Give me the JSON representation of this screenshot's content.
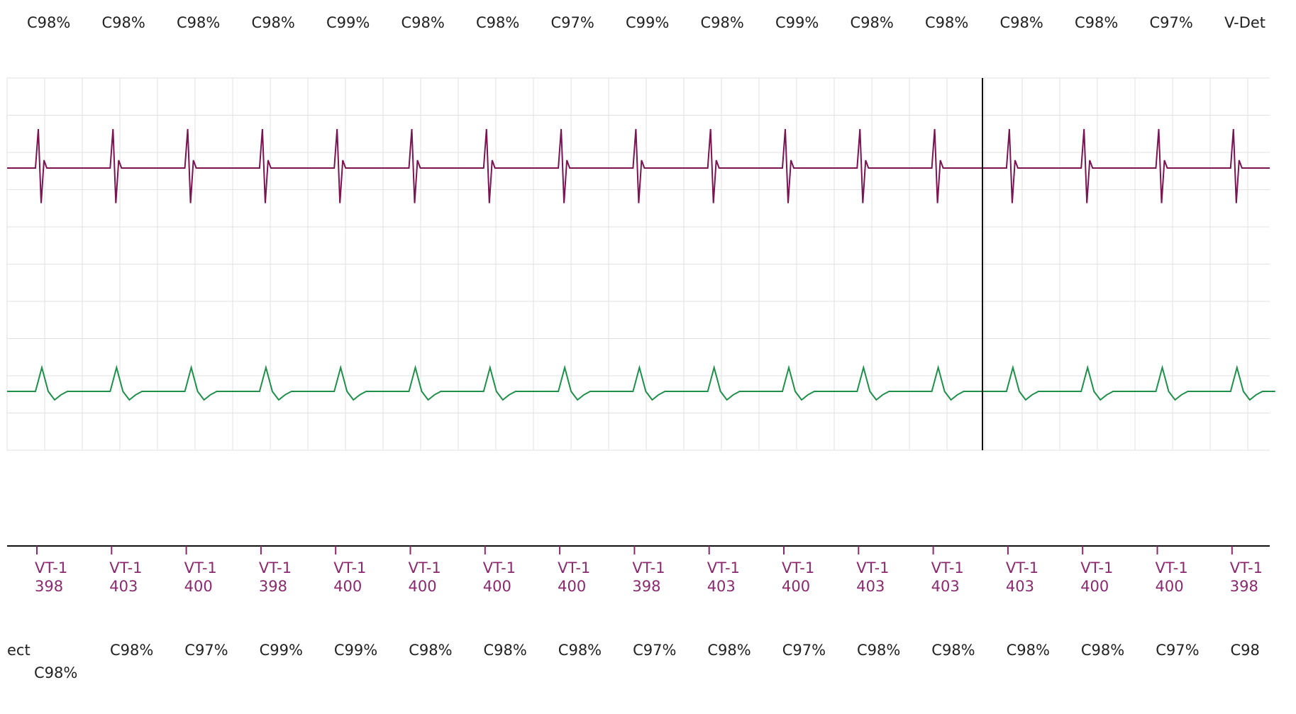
{
  "colors": {
    "lead1": "#7a1452",
    "lead2": "#1f8f4a",
    "marker": "#8a2a6e",
    "text": "#222222",
    "grid": "#e2e2e2",
    "cursor": "#111111"
  },
  "top_labels": [
    "C98%",
    "C98%",
    "C98%",
    "C98%",
    "C99%",
    "C98%",
    "C98%",
    "C97%",
    "C99%",
    "C98%",
    "C99%",
    "C98%",
    "C98%",
    "C98%",
    "C98%",
    "C97%",
    "V-Det"
  ],
  "bottom_labels": [
    "ect",
    "C98%",
    "C98%",
    "C97%",
    "C99%",
    "C99%",
    "C98%",
    "C98%",
    "C98%",
    "C97%",
    "C98%",
    "C97%",
    "C98%",
    "C98%",
    "C98%",
    "C98%",
    "C97%",
    "C98"
  ],
  "chart_data": {
    "type": "line",
    "series": [
      {
        "values": [
          0,
          1,
          -0.9,
          0.2,
          0,
          0,
          0,
          0
        ]
      },
      {
        "values": [
          0,
          0.7,
          0,
          -0.25,
          -0.1,
          0,
          0,
          0
        ]
      }
    ],
    "beats": [
      {
        "marker": "VT-1",
        "interval": "398"
      },
      {
        "marker": "VT-1",
        "interval": "403"
      },
      {
        "marker": "VT-1",
        "interval": "400"
      },
      {
        "marker": "VT-1",
        "interval": "398"
      },
      {
        "marker": "VT-1",
        "interval": "400"
      },
      {
        "marker": "VT-1",
        "interval": "400"
      },
      {
        "marker": "VT-1",
        "interval": "400"
      },
      {
        "marker": "VT-1",
        "interval": "400"
      },
      {
        "marker": "VT-1",
        "interval": "398"
      },
      {
        "marker": "VT-1",
        "interval": "403"
      },
      {
        "marker": "VT-1",
        "interval": "400"
      },
      {
        "marker": "VT-1",
        "interval": "403"
      },
      {
        "marker": "VT-1",
        "interval": "403"
      },
      {
        "marker": "VT-1",
        "interval": "403"
      },
      {
        "marker": "VT-1",
        "interval": "400"
      },
      {
        "marker": "VT-1",
        "interval": "400"
      },
      {
        "marker": "VT-1",
        "interval": "398"
      }
    ]
  }
}
